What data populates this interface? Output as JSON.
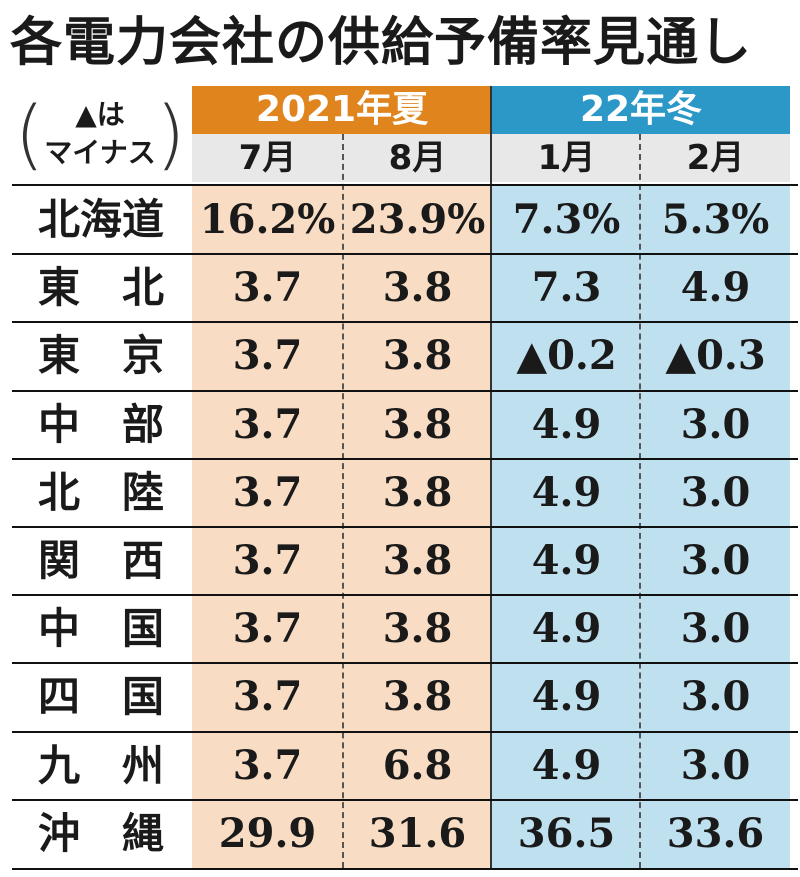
{
  "chart_data": {
    "type": "table",
    "title": "各電力会社の供給予備率見通し",
    "note": [
      "▲は",
      "マイナス"
    ],
    "seasons": [
      {
        "label": "2021年夏",
        "color": "#e0841e",
        "bg": "#f8dcc3",
        "months": [
          "7月",
          "8月"
        ]
      },
      {
        "label": "22年冬",
        "color": "#2c98c8",
        "bg": "#bfe0ef",
        "months": [
          "1月",
          "2月"
        ]
      }
    ],
    "rows": [
      {
        "region": "北海道",
        "values": [
          "16.2%",
          "23.9%",
          "7.3%",
          "5.3%"
        ]
      },
      {
        "region": "東　北",
        "values": [
          "3.7",
          "3.8",
          "7.3",
          "4.9"
        ]
      },
      {
        "region": "東　京",
        "values": [
          "3.7",
          "3.8",
          "▲0.2",
          "▲0.3"
        ]
      },
      {
        "region": "中　部",
        "values": [
          "3.7",
          "3.8",
          "4.9",
          "3.0"
        ]
      },
      {
        "region": "北　陸",
        "values": [
          "3.7",
          "3.8",
          "4.9",
          "3.0"
        ]
      },
      {
        "region": "関　西",
        "values": [
          "3.7",
          "3.8",
          "4.9",
          "3.0"
        ]
      },
      {
        "region": "中　国",
        "values": [
          "3.7",
          "3.8",
          "4.9",
          "3.0"
        ]
      },
      {
        "region": "四　国",
        "values": [
          "3.7",
          "3.8",
          "4.9",
          "3.0"
        ]
      },
      {
        "region": "九　州",
        "values": [
          "3.7",
          "6.8",
          "4.9",
          "3.0"
        ]
      },
      {
        "region": "沖　縄",
        "values": [
          "29.9",
          "31.6",
          "36.5",
          "33.6"
        ]
      }
    ]
  }
}
